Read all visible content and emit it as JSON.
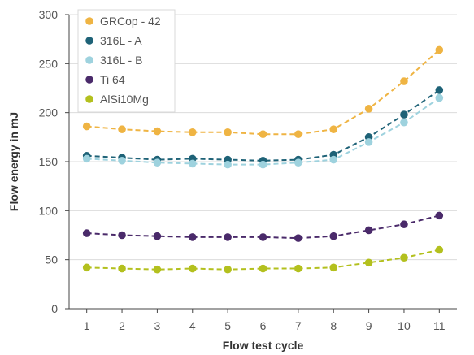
{
  "chart_data": {
    "type": "line",
    "xlabel": "Flow test cycle",
    "ylabel": "Flow energy in mJ",
    "ylim": [
      0,
      300
    ],
    "yticks": [
      0,
      50,
      100,
      150,
      200,
      250,
      300
    ],
    "x": [
      1,
      2,
      3,
      4,
      5,
      6,
      7,
      8,
      9,
      10,
      11
    ],
    "grid": "horizontal",
    "legend_position": "top-left",
    "series": [
      {
        "name": "GRCop - 42",
        "color": "#EFB443",
        "values": [
          186,
          183,
          181,
          180,
          180,
          178,
          178,
          183,
          204,
          232,
          264
        ]
      },
      {
        "name": "316L - A",
        "color": "#1E6277",
        "values": [
          156,
          154,
          152,
          153,
          152,
          151,
          152,
          157,
          175,
          198,
          223
        ]
      },
      {
        "name": "316L - B",
        "color": "#9ED2DE",
        "values": [
          153,
          151,
          149,
          148,
          147,
          147,
          149,
          152,
          170,
          190,
          215
        ]
      },
      {
        "name": "Ti 64",
        "color": "#4A2A6A",
        "values": [
          77,
          75,
          74,
          73,
          73,
          73,
          72,
          74,
          80,
          86,
          95
        ]
      },
      {
        "name": "AlSi10Mg",
        "color": "#B3C01E",
        "values": [
          42,
          41,
          40,
          41,
          40,
          41,
          41,
          42,
          47,
          52,
          60
        ]
      }
    ]
  }
}
